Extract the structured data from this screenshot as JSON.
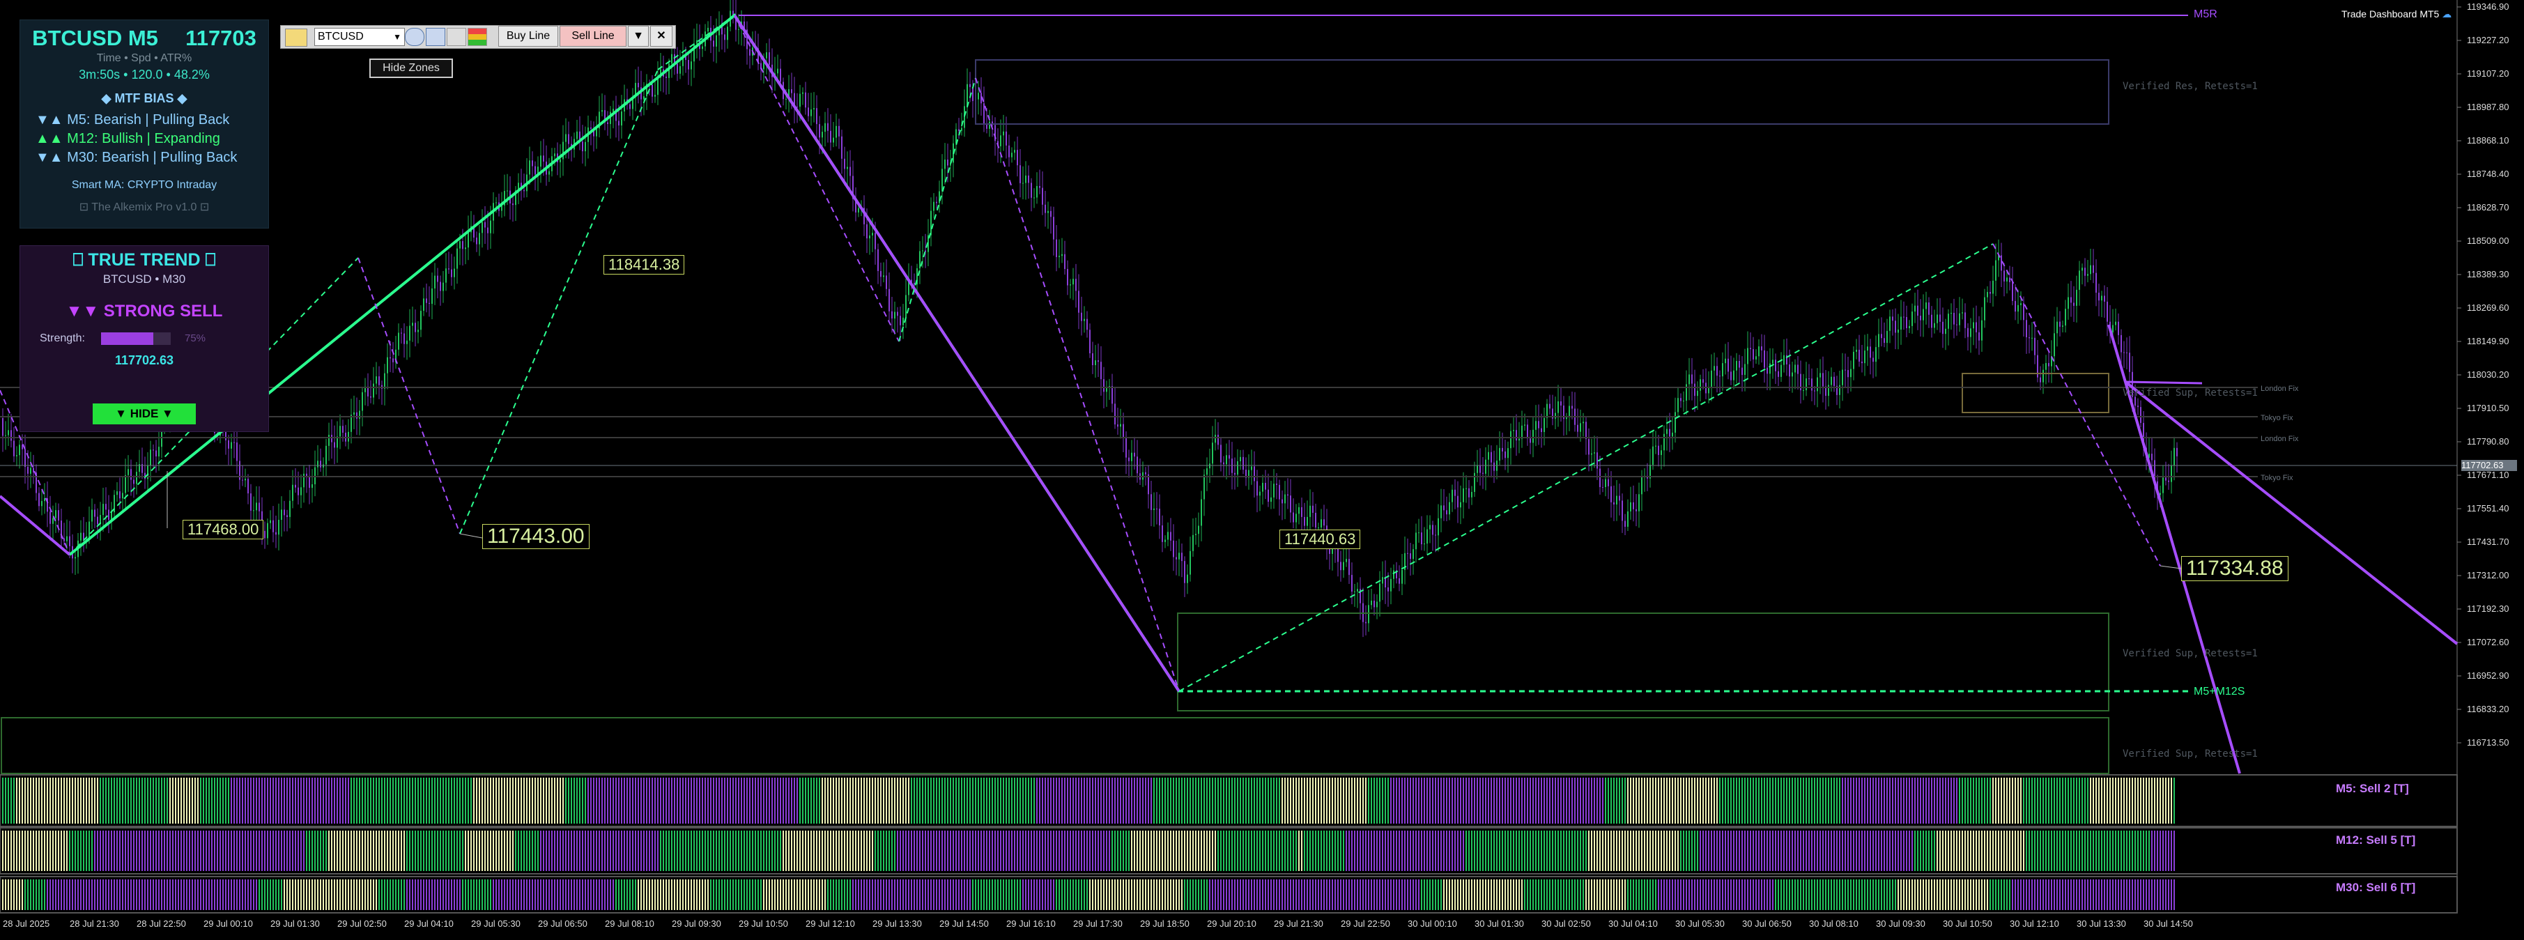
{
  "header": {
    "symbol_tf": "BTCUSD M5",
    "price": "117703",
    "sub_labels": "Time  •  Spd  •  ATR%",
    "sub_values": "3m:50s  •  120.0  •  48.2%",
    "mtf_title": "◆ MTF BIAS ◆",
    "bias": [
      {
        "arrows": "▼▲",
        "text": "M5: Bearish | Pulling Back",
        "color": "#8fd0ff"
      },
      {
        "arrows": "▲▲",
        "text": "M12: Bullish | Expanding",
        "color": "#3cff7a"
      },
      {
        "arrows": "▼▲",
        "text": "M30: Bearish | Pulling Back",
        "color": "#8fd0ff"
      }
    ],
    "smart_ma": "Smart MA: CRYPTO Intraday",
    "brand": "⊡ The Alkemix Pro v1.0 ⊡"
  },
  "true_trend": {
    "title": "⎕ TRUE TREND ⎕",
    "sub": "BTCUSD • M30",
    "signal": "▼▼ STRONG SELL",
    "strength_label": "Strength:",
    "strength_pct": "75%",
    "strength_value": 0.75,
    "price": "117702.63",
    "hide_label": "▼ HIDE ▼"
  },
  "toolbar": {
    "symbol": "BTCUSD",
    "buy_line": "Buy Line",
    "sell_line": "Sell Line",
    "close": "✕",
    "hide_zones": "Hide Zones"
  },
  "top_right": {
    "dashboard": "Trade Dashboard MT5"
  },
  "price_axis": [
    "119346.90",
    "119227.20",
    "119107.20",
    "118987.80",
    "118868.10",
    "118748.40",
    "118628.70",
    "118509.00",
    "118389.30",
    "118269.60",
    "118149.90",
    "118030.20",
    "117910.50",
    "117790.80",
    "117671.10",
    "117551.40",
    "117431.70",
    "117312.00",
    "117192.30",
    "117072.60",
    "116952.90",
    "116833.20",
    "116713.50"
  ],
  "current_price_tag": "117702.63",
  "time_axis": [
    "28 Jul 2025",
    "28 Jul 21:30",
    "28 Jul 22:50",
    "29 Jul 00:10",
    "29 Jul 01:30",
    "29 Jul 02:50",
    "29 Jul 04:10",
    "29 Jul 05:30",
    "29 Jul 06:50",
    "29 Jul 08:10",
    "29 Jul 09:30",
    "29 Jul 10:50",
    "29 Jul 12:10",
    "29 Jul 13:30",
    "29 Jul 14:50",
    "29 Jul 16:10",
    "29 Jul 17:30",
    "29 Jul 18:50",
    "29 Jul 20:10",
    "29 Jul 21:30",
    "29 Jul 22:50",
    "30 Jul 00:10",
    "30 Jul 01:30",
    "30 Jul 02:50",
    "30 Jul 04:10",
    "30 Jul 05:30",
    "30 Jul 06:50",
    "30 Jul 08:10",
    "30 Jul 09:30",
    "30 Jul 10:50",
    "30 Jul 12:10",
    "30 Jul 13:30",
    "30 Jul 14:50"
  ],
  "swing_labels": {
    "a": "117468.00",
    "b": "118414.38",
    "c": "117443.00",
    "d": "117440.63",
    "e": "117334.88"
  },
  "zones": {
    "res": "Verified Res, Retests=1",
    "sup1": "Verified Sup, Retests=1",
    "sup2": "Verified Sup, Retests=1",
    "sup3": "Verified Sup, Retests=1"
  },
  "levels": {
    "m5r": "M5R",
    "m5m12s": "M5+M12S",
    "london1": "London Fix",
    "tokyo1": "Tokyo Fix",
    "london2": "London Fix",
    "tokyo2": "Tokyo Fix"
  },
  "indicators": {
    "m5": "M5: Sell 2 [T]",
    "m12": "M12: Sell 5 [T]",
    "m30": "M30: Sell 6 [T]"
  },
  "colors": {
    "bull": "#22c55e",
    "bear": "#8b3fd9",
    "trend_up": "#2bff8f",
    "trend_down": "#a64dff",
    "bar_cream": "#f0f5b8"
  }
}
